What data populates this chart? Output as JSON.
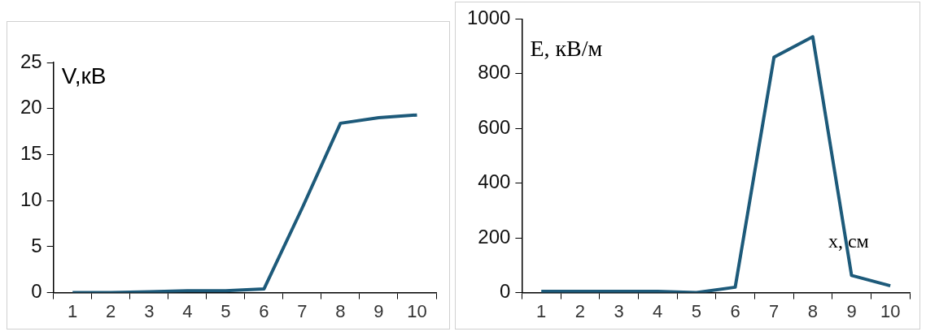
{
  "chart_data": [
    {
      "type": "line",
      "ylabel": "V,кВ",
      "categories": [
        "1",
        "2",
        "3",
        "4",
        "5",
        "6",
        "7",
        "8",
        "9",
        "10"
      ],
      "series": [
        {
          "color": "#1d5a7a",
          "values": [
            0,
            0,
            0.1,
            0.2,
            0.2,
            0.4,
            9.2,
            18.4,
            19,
            19.3
          ]
        }
      ],
      "ylim": [
        0,
        25
      ],
      "yticks": [
        0,
        5,
        10,
        15,
        20,
        25
      ],
      "grid": false,
      "legend": false,
      "marker": "none",
      "line_style": "solid"
    },
    {
      "type": "line",
      "ylabel": "E, кВ/м",
      "xlabel": "x, см",
      "categories": [
        "1",
        "2",
        "3",
        "4",
        "5",
        "6",
        "7",
        "8",
        "9",
        "10"
      ],
      "series": [
        {
          "color": "#1d5a7a",
          "values": [
            5,
            5,
            5,
            5,
            0,
            20,
            860,
            935,
            63,
            25
          ]
        }
      ],
      "ylim": [
        0,
        1000
      ],
      "yticks": [
        0,
        200,
        400,
        600,
        800,
        1000
      ],
      "grid": false,
      "legend": false,
      "marker": "none",
      "line_style": "solid"
    }
  ]
}
